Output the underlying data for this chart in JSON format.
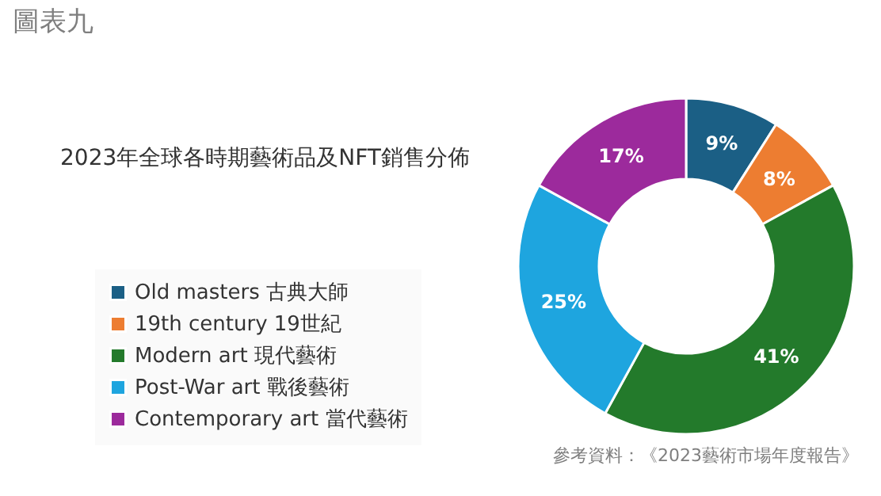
{
  "chart_data": {
    "type": "donut",
    "title": "圖表九",
    "subtitle": "2023年全球各時期藝術品及NFT銷售分佈",
    "categories": [
      "Old masters 古典大師",
      "19th century 19世紀",
      "Modern art 現代藝術",
      "Post-War art 戰後藝術",
      "Contemporary art 當代藝術"
    ],
    "values": [
      9,
      8,
      41,
      25,
      17
    ],
    "colors": [
      "#1b5f85",
      "#ed7d31",
      "#237a2b",
      "#1ea5df",
      "#9c2a9c"
    ],
    "value_labels": [
      "9%",
      "8%",
      "41%",
      "25%",
      "17%"
    ],
    "legend": "left",
    "annotations": [
      "參考資料：《2023藝術市場年度報告》"
    ]
  }
}
